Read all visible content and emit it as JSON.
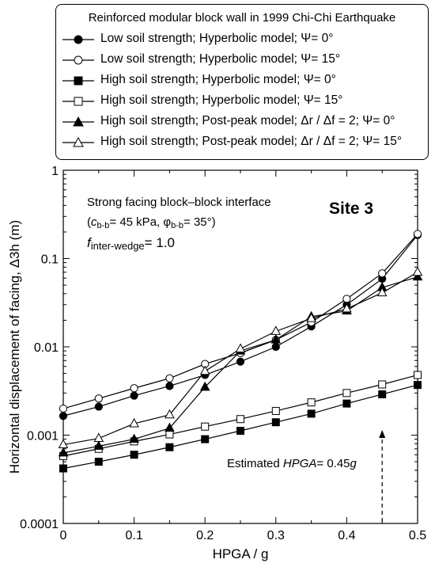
{
  "chart_data": {
    "type": "line",
    "title": "Reinforced modular block wall in 1999 Chi-Chi Earthquake",
    "xlabel": "HPGA / g",
    "ylabel": "Horizontal displacement of facing, Δ3h (m)",
    "xlim": [
      0,
      0.5
    ],
    "ylim": [
      0.0001,
      1
    ],
    "yscale": "log",
    "x_ticks": [
      "0",
      "0.1",
      "0.2",
      "0.3",
      "0.4",
      "0.5"
    ],
    "y_ticks": [
      "0.0001",
      "0.001",
      "0.01",
      "0.1",
      "1"
    ],
    "x": [
      0,
      0.05,
      0.1,
      0.15,
      0.2,
      0.25,
      0.3,
      0.35,
      0.4,
      0.45,
      0.5
    ],
    "series": [
      {
        "name": "Low soil strength; Hyperbolic model; Ψ= 0°",
        "marker": "circle",
        "filled": true,
        "values": [
          0.00165,
          0.0021,
          0.0028,
          0.0036,
          0.0048,
          0.0068,
          0.01,
          0.017,
          0.03,
          0.059,
          0.185
        ]
      },
      {
        "name": "Low soil strength; Hyperbolic model; Ψ= 15°",
        "marker": "circle",
        "filled": false,
        "values": [
          0.002,
          0.0026,
          0.0034,
          0.0044,
          0.0064,
          0.0085,
          0.012,
          0.019,
          0.035,
          0.068,
          0.19
        ]
      },
      {
        "name": "High soil strength; Hyperbolic model; Ψ= 0°",
        "marker": "square",
        "filled": true,
        "values": [
          0.00042,
          0.0005,
          0.0006,
          0.00073,
          0.0009,
          0.00112,
          0.0014,
          0.00175,
          0.00228,
          0.0029,
          0.0037
        ]
      },
      {
        "name": "High soil strength; Hyperbolic model; Ψ= 15°",
        "marker": "square",
        "filled": false,
        "values": [
          0.00058,
          0.0007,
          0.00085,
          0.00102,
          0.00125,
          0.00152,
          0.00188,
          0.00235,
          0.003,
          0.00375,
          0.0048
        ]
      },
      {
        "name": "High soil strength; Post-peak model; Δr / Δf = 2; Ψ= 0°",
        "marker": "triangle",
        "filled": true,
        "values": [
          0.00063,
          0.00075,
          0.0009,
          0.0012,
          0.0035,
          0.009,
          0.012,
          0.022,
          0.0255,
          0.047,
          0.062
        ]
      },
      {
        "name": "High soil strength; Post-peak model; Δr / Δf = 2; Ψ= 15°",
        "marker": "triangle",
        "filled": false,
        "values": [
          0.00078,
          0.00092,
          0.00135,
          0.0017,
          0.0053,
          0.0095,
          0.015,
          0.021,
          0.027,
          0.041,
          0.07
        ]
      }
    ],
    "grid": false,
    "legend_position": "top"
  },
  "legend": {
    "title": "Reinforced modular block wall in 1999 Chi-Chi Earthquake",
    "items": [
      "Low soil strength; Hyperbolic model; Ψ= 0°",
      "Low soil strength; Hyperbolic model; Ψ= 15°",
      "High soil strength; Hyperbolic model; Ψ= 0°",
      "High soil strength; Hyperbolic model; Ψ= 15°",
      "High soil strength; Post-peak model; Δr / Δf = 2; Ψ= 0°",
      "High soil strength; Post-peak model; Δr / Δf = 2; Ψ= 15°"
    ]
  },
  "annotations": {
    "interface": "Strong facing block–block interface",
    "params": "(cb-b= 45 kPa, φb-b= 35°)",
    "wedge": "finter-wedge= 1.0",
    "site": "Site 3",
    "estimate": "Estimated HPGA= 0.45g",
    "estimate_x": 0.45
  }
}
